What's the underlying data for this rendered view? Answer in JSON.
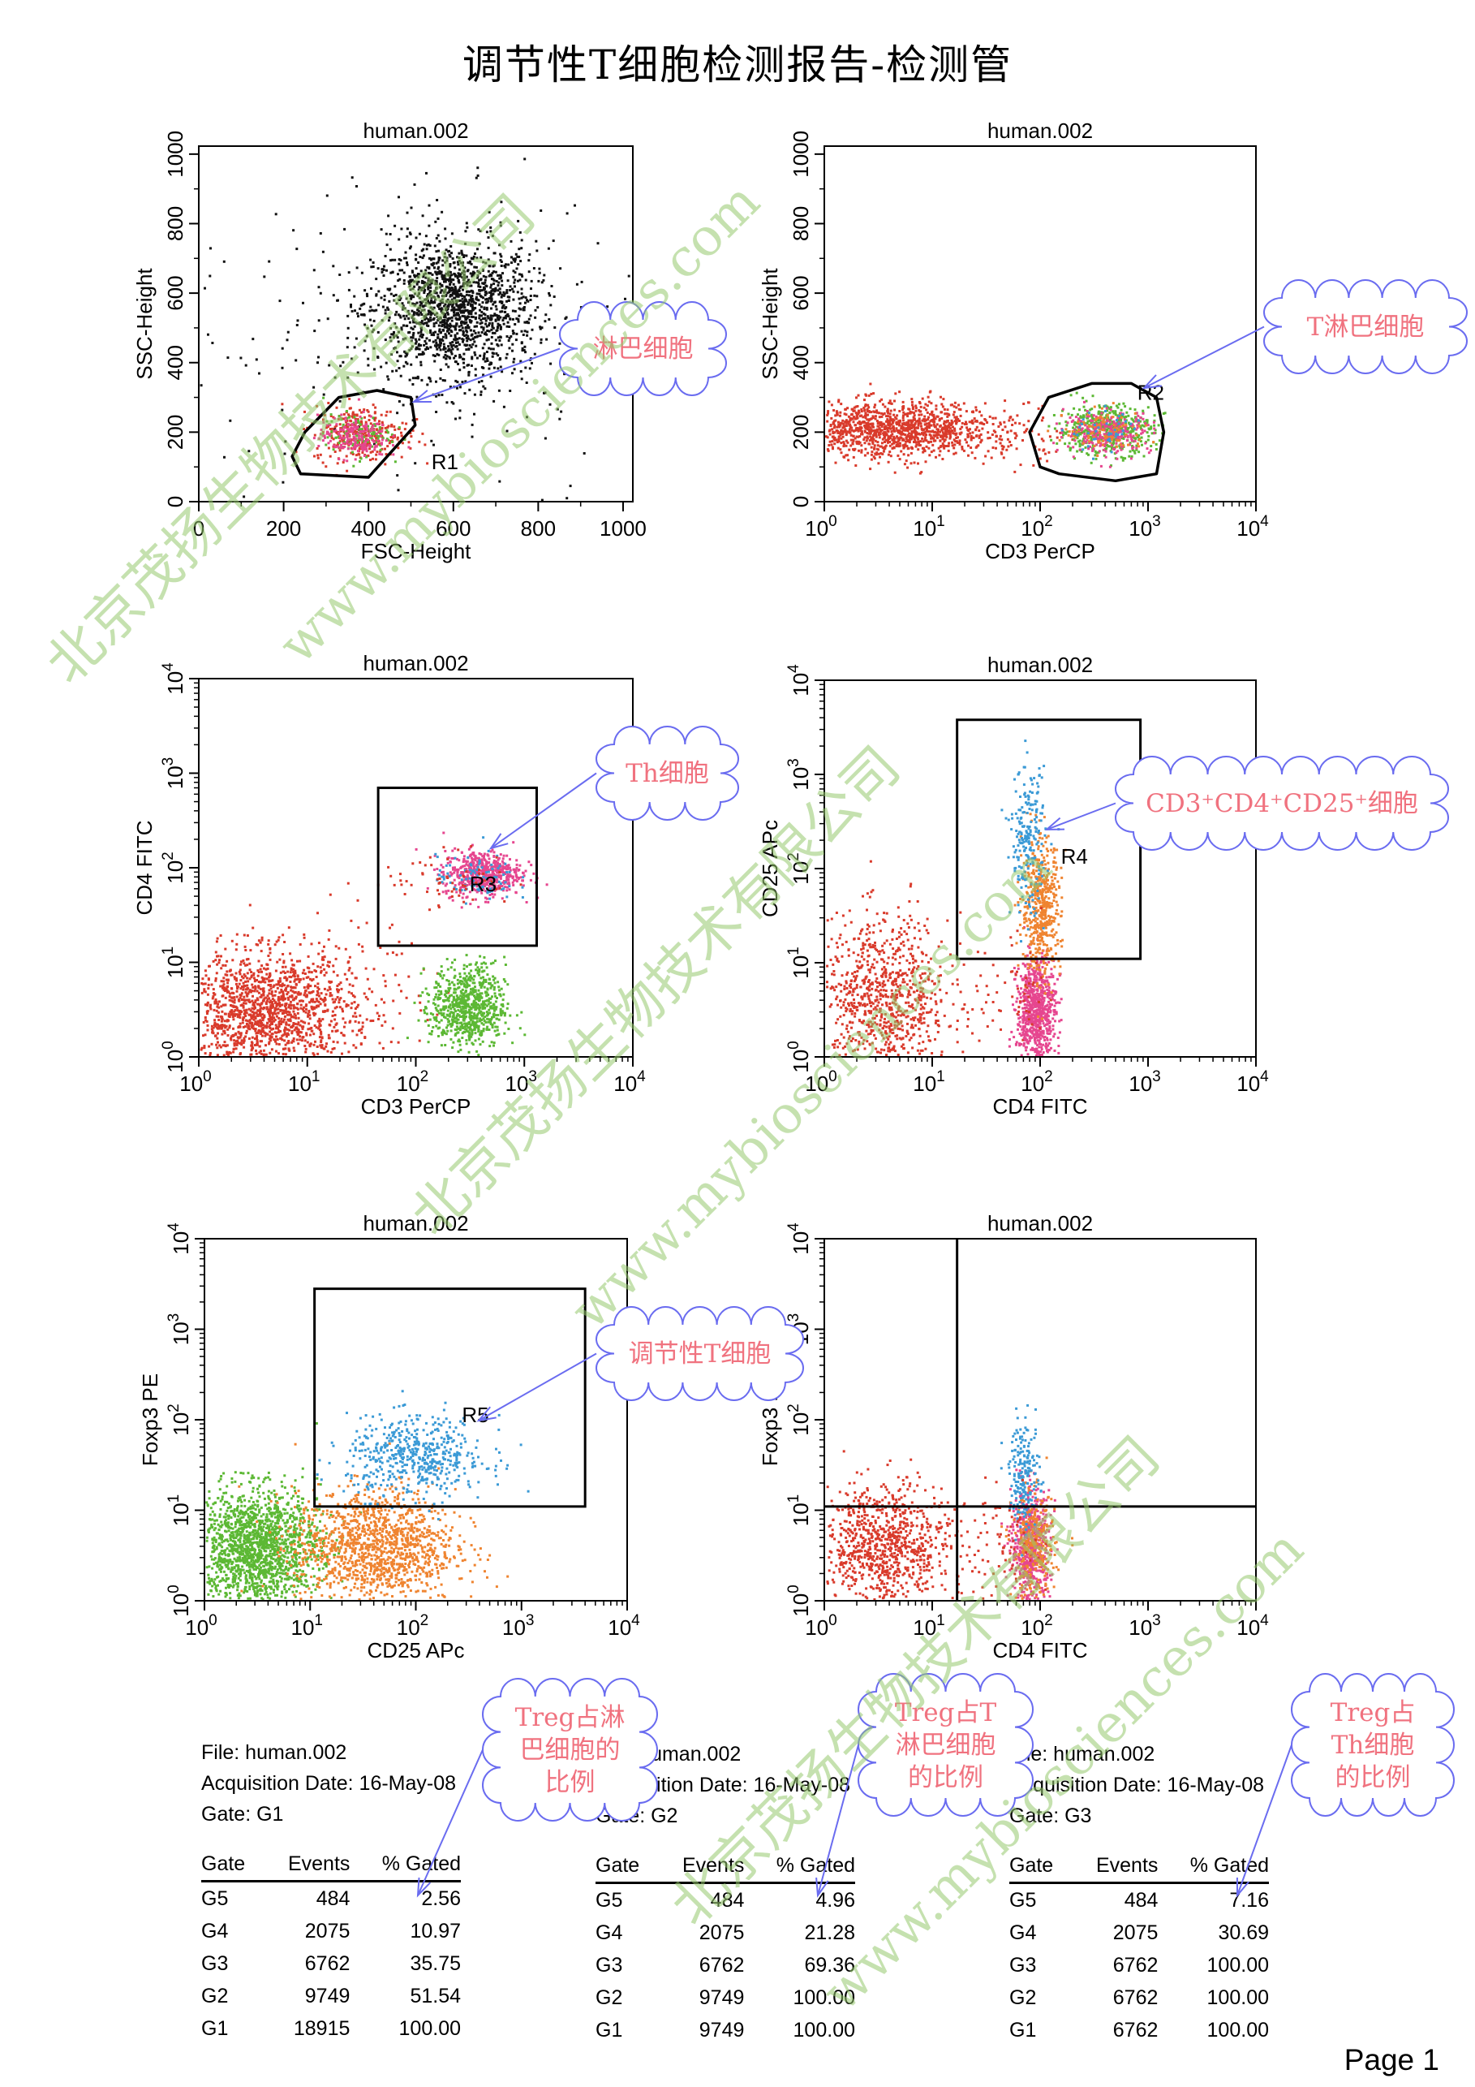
{
  "title": "调节性T细胞检测报告-检测管",
  "page_label": "Page 1",
  "watermarks": [
    "北京茂扬生物技术有限公司",
    "www.mybiosciences.com"
  ],
  "colors": {
    "black": "#111111",
    "red": "#d93a2b",
    "green": "#5cb834",
    "pink": "#e6468f",
    "blue": "#3b9ad6",
    "orange": "#ef8430",
    "callout_text": "#f0727f",
    "callout_border": "#6a6cf0"
  },
  "chart_data": [
    {
      "type": "scatter",
      "title": "human.002",
      "xlabel": "FSC-Height",
      "ylabel": "SSC-Height",
      "xscale": "linear",
      "yscale": "linear",
      "xlim": [
        0,
        1023
      ],
      "ylim": [
        0,
        1023
      ],
      "xticks": [
        "0",
        "200",
        "400",
        "600",
        "800",
        "1000"
      ],
      "yticks": [
        "0",
        "200",
        "400",
        "600",
        "800",
        "1000"
      ],
      "gates": [
        {
          "name": "R1",
          "shape": "polygon",
          "vertices": [
            [
              240,
              80
            ],
            [
              400,
              70
            ],
            [
              510,
              220
            ],
            [
              500,
              300
            ],
            [
              420,
              320
            ],
            [
              330,
              300
            ],
            [
              250,
              200
            ],
            [
              220,
              130
            ]
          ]
        }
      ],
      "clusters": [
        {
          "color": "black",
          "center": [
            600,
            560
          ],
          "spread": [
            95,
            95
          ],
          "n": 1500
        },
        {
          "color": "black",
          "center": [
            500,
            500
          ],
          "spread": [
            270,
            260
          ],
          "n": 260
        },
        {
          "color": "red",
          "center": [
            380,
            200
          ],
          "spread": [
            55,
            40
          ],
          "n": 320
        },
        {
          "color": "green",
          "center": [
            370,
            195
          ],
          "spread": [
            40,
            30
          ],
          "n": 110
        },
        {
          "color": "pink",
          "center": [
            360,
            190
          ],
          "spread": [
            40,
            30
          ],
          "n": 180
        }
      ]
    },
    {
      "type": "scatter",
      "title": "human.002",
      "xlabel": "CD3 PerCP",
      "ylabel": "SSC-Height",
      "xscale": "log",
      "yscale": "linear",
      "xlim": [
        1,
        10000
      ],
      "ylim": [
        0,
        1023
      ],
      "xticks": [
        "10^0",
        "10^1",
        "10^2",
        "10^3",
        "10^4"
      ],
      "yticks": [
        "0",
        "200",
        "400",
        "600",
        "800",
        "1000"
      ],
      "gates": [
        {
          "name": "R2",
          "shape": "polygon",
          "vertices": [
            [
              100,
              100
            ],
            [
              150,
              80
            ],
            [
              500,
              60
            ],
            [
              1200,
              80
            ],
            [
              1400,
              200
            ],
            [
              1200,
              300
            ],
            [
              700,
              340
            ],
            [
              300,
              340
            ],
            [
              120,
              300
            ],
            [
              80,
              200
            ]
          ]
        }
      ],
      "clusters": [
        {
          "color": "red",
          "center": [
            4,
            210
          ],
          "spread": [
            0.45,
            40
          ],
          "n": 1200
        },
        {
          "color": "red",
          "center": [
            40,
            200
          ],
          "spread": [
            0.4,
            40
          ],
          "n": 120
        },
        {
          "color": "green",
          "center": [
            400,
            210
          ],
          "spread": [
            0.22,
            35
          ],
          "n": 500
        },
        {
          "color": "pink",
          "center": [
            420,
            205
          ],
          "spread": [
            0.2,
            30
          ],
          "n": 260
        },
        {
          "color": "orange",
          "center": [
            400,
            205
          ],
          "spread": [
            0.2,
            30
          ],
          "n": 100
        },
        {
          "color": "blue",
          "center": [
            420,
            205
          ],
          "spread": [
            0.18,
            28
          ],
          "n": 40
        }
      ]
    },
    {
      "type": "scatter",
      "title": "human.002",
      "xlabel": "CD3 PerCP",
      "ylabel": "CD4 FITC",
      "xscale": "log",
      "yscale": "log",
      "xlim": [
        1,
        10000
      ],
      "ylim": [
        1,
        10000
      ],
      "xticks": [
        "10^0",
        "10^1",
        "10^2",
        "10^3",
        "10^4"
      ],
      "yticks": [
        "10^0",
        "10^1",
        "10^2",
        "10^3",
        "10^4"
      ],
      "gates": [
        {
          "name": "R3",
          "shape": "rect",
          "x": [
            45,
            1300
          ],
          "y": [
            15,
            700
          ]
        }
      ],
      "clusters": [
        {
          "color": "red",
          "center": [
            4,
            3
          ],
          "spread": [
            0.4,
            0.32
          ],
          "n": 1500
        },
        {
          "color": "red",
          "center": [
            20,
            5
          ],
          "spread": [
            0.4,
            0.4
          ],
          "n": 120
        },
        {
          "color": "green",
          "center": [
            300,
            3.5
          ],
          "spread": [
            0.17,
            0.22
          ],
          "n": 750
        },
        {
          "color": "pink",
          "center": [
            400,
            90
          ],
          "spread": [
            0.18,
            0.12
          ],
          "n": 550
        },
        {
          "color": "blue",
          "center": [
            350,
            80
          ],
          "spread": [
            0.18,
            0.12
          ],
          "n": 90
        },
        {
          "color": "red",
          "center": [
            200,
            80
          ],
          "spread": [
            0.3,
            0.15
          ],
          "n": 60
        }
      ]
    },
    {
      "type": "scatter",
      "title": "human.002",
      "xlabel": "CD4 FITC",
      "ylabel": "CD25 APc",
      "xscale": "log",
      "yscale": "log",
      "xlim": [
        1,
        10000
      ],
      "ylim": [
        1,
        10000
      ],
      "xticks": [
        "10^0",
        "10^1",
        "10^2",
        "10^3",
        "10^4"
      ],
      "yticks": [
        "10^0",
        "10^1",
        "10^2",
        "10^3",
        "10^4"
      ],
      "gates": [
        {
          "name": "R4",
          "shape": "rect",
          "x": [
            17,
            850
          ],
          "y": [
            11,
            3800
          ]
        }
      ],
      "clusters": [
        {
          "color": "red",
          "center": [
            3.5,
            4
          ],
          "spread": [
            0.3,
            0.45
          ],
          "n": 900
        },
        {
          "color": "pink",
          "center": [
            90,
            3
          ],
          "spread": [
            0.09,
            0.3
          ],
          "n": 750
        },
        {
          "color": "orange",
          "center": [
            100,
            40
          ],
          "spread": [
            0.09,
            0.35
          ],
          "n": 500
        },
        {
          "color": "blue",
          "center": [
            75,
            200
          ],
          "spread": [
            0.08,
            0.38
          ],
          "n": 220
        },
        {
          "color": "red",
          "center": [
            50,
            4
          ],
          "spread": [
            0.25,
            0.3
          ],
          "n": 60
        }
      ]
    },
    {
      "type": "scatter",
      "title": "human.002",
      "xlabel": "CD25 APc",
      "ylabel": "Foxp3 PE",
      "xscale": "log",
      "yscale": "log",
      "xlim": [
        1,
        10000
      ],
      "ylim": [
        1,
        10000
      ],
      "xticks": [
        "10^0",
        "10^1",
        "10^2",
        "10^3",
        "10^4"
      ],
      "yticks": [
        "10^0",
        "10^1",
        "10^2",
        "10^3",
        "10^4"
      ],
      "gates": [
        {
          "name": "R5",
          "shape": "rect",
          "x": [
            11,
            4000
          ],
          "y": [
            11,
            2800
          ]
        }
      ],
      "clusters": [
        {
          "color": "green",
          "center": [
            3,
            4
          ],
          "spread": [
            0.3,
            0.32
          ],
          "n": 1700
        },
        {
          "color": "orange",
          "center": [
            40,
            4
          ],
          "spread": [
            0.38,
            0.32
          ],
          "n": 1300
        },
        {
          "color": "blue",
          "center": [
            100,
            40
          ],
          "spread": [
            0.33,
            0.22
          ],
          "n": 520
        }
      ]
    },
    {
      "type": "scatter",
      "title": "human.002",
      "xlabel": "CD4 FITC",
      "ylabel": "Foxp3 PE",
      "xscale": "log",
      "yscale": "log",
      "xlim": [
        1,
        10000
      ],
      "ylim": [
        1,
        10000
      ],
      "xticks": [
        "10^0",
        "10^1",
        "10^2",
        "10^3",
        "10^4"
      ],
      "yticks": [
        "10^0",
        "10^1",
        "10^2",
        "10^3",
        "10^4"
      ],
      "quadrant": {
        "x": 17,
        "y": 11
      },
      "clusters": [
        {
          "color": "red",
          "center": [
            3.5,
            4
          ],
          "spread": [
            0.3,
            0.35
          ],
          "n": 900
        },
        {
          "color": "pink",
          "center": [
            80,
            4
          ],
          "spread": [
            0.09,
            0.3
          ],
          "n": 650
        },
        {
          "color": "orange",
          "center": [
            85,
            4
          ],
          "spread": [
            0.1,
            0.3
          ],
          "n": 300
        },
        {
          "color": "blue",
          "center": [
            70,
            25
          ],
          "spread": [
            0.07,
            0.3
          ],
          "n": 200
        },
        {
          "color": "red",
          "center": [
            40,
            4
          ],
          "spread": [
            0.25,
            0.3
          ],
          "n": 80
        }
      ]
    }
  ],
  "stats": [
    {
      "file_label": "File: human.002",
      "date_label": "Acquisition Date: 16-May-08",
      "gate_label": "Gate: G1",
      "headers": [
        "Gate",
        "Events",
        "% Gated"
      ],
      "rows": [
        [
          "G5",
          "484",
          "2.56"
        ],
        [
          "G4",
          "2075",
          "10.97"
        ],
        [
          "G3",
          "6762",
          "35.75"
        ],
        [
          "G2",
          "9749",
          "51.54"
        ],
        [
          "G1",
          "18915",
          "100.00"
        ]
      ]
    },
    {
      "file_label": "File: human.002",
      "date_label": "Acquisition Date: 16-May-08",
      "gate_label": "Gate: G2",
      "headers": [
        "Gate",
        "Events",
        "% Gated"
      ],
      "rows": [
        [
          "G5",
          "484",
          "4.96"
        ],
        [
          "G4",
          "2075",
          "21.28"
        ],
        [
          "G3",
          "6762",
          "69.36"
        ],
        [
          "G2",
          "9749",
          "100.00"
        ],
        [
          "G1",
          "9749",
          "100.00"
        ]
      ]
    },
    {
      "file_label": "File: human.002",
      "date_label": "Acquisition Date: 16-May-08",
      "gate_label": "Gate: G3",
      "headers": [
        "Gate",
        "Events",
        "% Gated"
      ],
      "rows": [
        [
          "G5",
          "484",
          "7.16"
        ],
        [
          "G4",
          "2075",
          "30.69"
        ],
        [
          "G3",
          "6762",
          "100.00"
        ],
        [
          "G2",
          "6762",
          "100.00"
        ],
        [
          "G1",
          "6762",
          "100.00"
        ]
      ]
    }
  ],
  "callouts": [
    {
      "text": "淋巴细胞"
    },
    {
      "text": "T淋巴细胞"
    },
    {
      "text": "Th细胞"
    },
    {
      "text": "CD3⁺CD4⁺CD25⁺细胞"
    },
    {
      "text": "调节性T细胞"
    },
    {
      "text": "Treg占淋\n巴细胞的\n比例"
    },
    {
      "text": "Treg占T\n淋巴细胞\n的比例"
    },
    {
      "text": "Treg占\nTh细胞\n的比例"
    }
  ]
}
